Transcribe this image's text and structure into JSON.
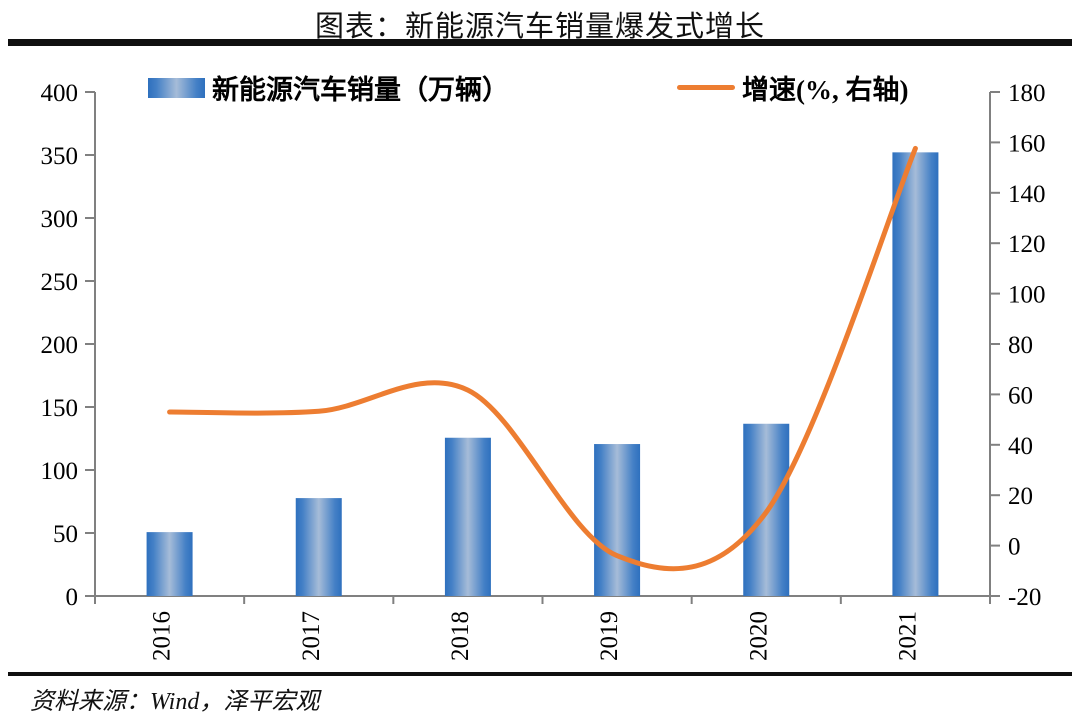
{
  "title": "图表：新能源汽车销量爆发式增长",
  "source": "资料来源：Wind，泽平宏观",
  "legend": [
    {
      "label": "新能源汽车销量（万辆）",
      "type": "bar",
      "swatch_icon": "bar-gradient-swatch"
    },
    {
      "label": "增速(%, 右轴)",
      "type": "line",
      "swatch_icon": "orange-line-swatch"
    }
  ],
  "colors": {
    "bar_edge": "#2E70BE",
    "bar_mid": "#A6BCD8",
    "line": "#ED7D31",
    "axis": "#808080",
    "rule": "#101010",
    "text": "#000000"
  },
  "chart_data": {
    "type": "bar",
    "subtype": "bar+line-combo",
    "title": "图表：新能源汽车销量爆发式增长",
    "categories": [
      "2016",
      "2017",
      "2018",
      "2019",
      "2020",
      "2021"
    ],
    "series": [
      {
        "name": "新能源汽车销量（万辆）",
        "type": "bar",
        "axis": "left",
        "values": [
          50.7,
          77.7,
          125.6,
          120.6,
          136.7,
          352.1
        ]
      },
      {
        "name": "增速(%, 右轴)",
        "type": "line",
        "axis": "right",
        "smooth": true,
        "values": [
          53.0,
          53.3,
          61.7,
          -4.0,
          13.3,
          157.6
        ]
      }
    ],
    "left_axis": {
      "min": 0,
      "max": 400,
      "step": 50,
      "ticks": [
        "400",
        "350",
        "300",
        "250",
        "200",
        "150",
        "100",
        "50",
        "0"
      ]
    },
    "right_axis": {
      "min": -20,
      "max": 180,
      "step": 20,
      "ticks": [
        "180",
        "160",
        "140",
        "120",
        "100",
        "80",
        "60",
        "40",
        "20",
        "0",
        "-20"
      ]
    },
    "x_tick_labels_rotated": true,
    "grid": false,
    "legend_position": "top"
  }
}
